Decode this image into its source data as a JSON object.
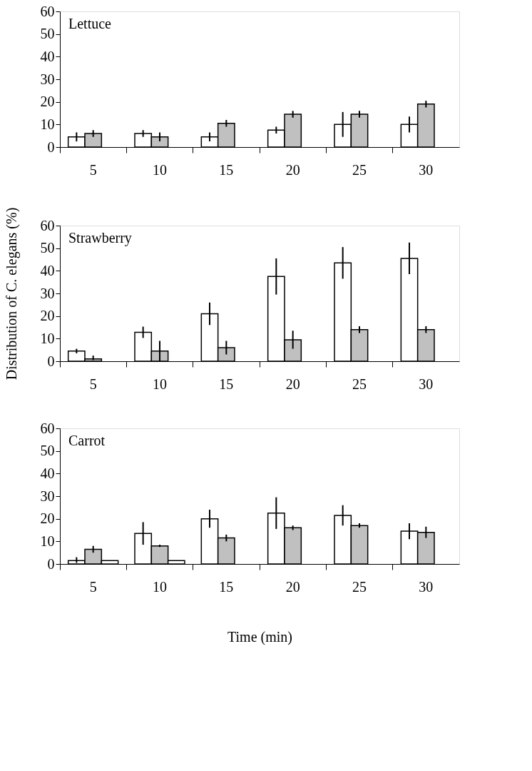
{
  "chart_data": [
    {
      "type": "bar",
      "annotations": [
        "Lettuce"
      ],
      "categories": [
        "5",
        "10",
        "15",
        "20",
        "25",
        "30"
      ],
      "ylim": [
        0,
        60
      ],
      "yticks": [
        0,
        10,
        20,
        30,
        40,
        50,
        60
      ],
      "series": [
        {
          "color": "#ffffff",
          "values": [
            4.5,
            6,
            4.5,
            7.5,
            10,
            10
          ],
          "errors": [
            2,
            1.5,
            2,
            1.5,
            5.5,
            3.5
          ]
        },
        {
          "color": "#c0c0c0",
          "values": [
            6,
            4.5,
            10.5,
            14.5,
            14.5,
            19
          ],
          "errors": [
            1.5,
            2,
            1.5,
            1.5,
            1.5,
            1.5
          ]
        }
      ]
    },
    {
      "type": "bar",
      "annotations": [
        "Strawberry"
      ],
      "ylabel": "Distribution of C. elegans (%)",
      "categories": [
        "5",
        "10",
        "15",
        "20",
        "25",
        "30"
      ],
      "ylim": [
        0,
        60
      ],
      "yticks": [
        0,
        10,
        20,
        30,
        40,
        50,
        60
      ],
      "series": [
        {
          "color": "#ffffff",
          "values": [
            4.5,
            12.8,
            21,
            37.5,
            43.5,
            45.5
          ],
          "errors": [
            1,
            2.5,
            5,
            8,
            7,
            7
          ]
        },
        {
          "color": "#c0c0c0",
          "values": [
            1,
            4.5,
            6,
            9.5,
            14,
            14
          ],
          "errors": [
            [
              0.5,
              2.5
            ],
            4.5,
            3,
            4,
            1.5,
            1.5
          ]
        }
      ]
    },
    {
      "type": "bar",
      "annotations": [
        "Carrot"
      ],
      "xlabel": "Time (min)",
      "categories": [
        "5",
        "10",
        "15",
        "20",
        "25",
        "30"
      ],
      "ylim": [
        0,
        60
      ],
      "yticks": [
        0,
        10,
        20,
        30,
        40,
        50,
        60
      ],
      "series": [
        {
          "color": "#ffffff",
          "values": [
            1.5,
            13.5,
            20,
            22.5,
            21.5,
            14.5
          ],
          "errors": [
            [
              0.5,
              3
            ],
            5,
            4,
            7,
            4.5,
            3.5
          ]
        },
        {
          "color": "#c0c0c0",
          "values": [
            6.5,
            8,
            11.5,
            16,
            17,
            14
          ],
          "errors": [
            1.5,
            0.5,
            1.5,
            1,
            1,
            2.5
          ]
        },
        {
          "color": "#000000",
          "values": [
            1.5,
            1.5,
            null,
            null,
            null,
            null
          ]
        }
      ]
    }
  ]
}
